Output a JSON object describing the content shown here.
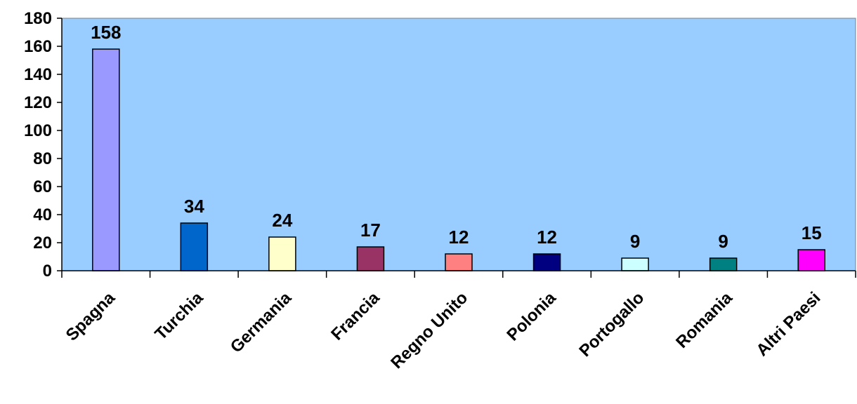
{
  "chart_data": {
    "type": "bar",
    "title": "",
    "xlabel": "",
    "ylabel": "",
    "categories": [
      "Spagna",
      "Turchia",
      "Germania",
      "Francia",
      "Regno Unito",
      "Polonia",
      "Portogallo",
      "Romania",
      "Altri Paesi"
    ],
    "values": [
      158,
      34,
      24,
      17,
      12,
      12,
      9,
      9,
      15
    ],
    "ylim": [
      0,
      180
    ],
    "yticks": [
      0,
      20,
      40,
      60,
      80,
      100,
      120,
      140,
      160,
      180
    ],
    "grid": false,
    "legend": "none",
    "data_labels": true,
    "colors": {
      "plot_background": "#99CCFF",
      "bars": [
        "#9999FF",
        "#0066CC",
        "#FFFFCC",
        "#993366",
        "#FF8080",
        "#000080",
        "#CCFFFF",
        "#008080",
        "#FF00FF"
      ],
      "bar_outline": "#000000",
      "axis": "#000000"
    }
  }
}
